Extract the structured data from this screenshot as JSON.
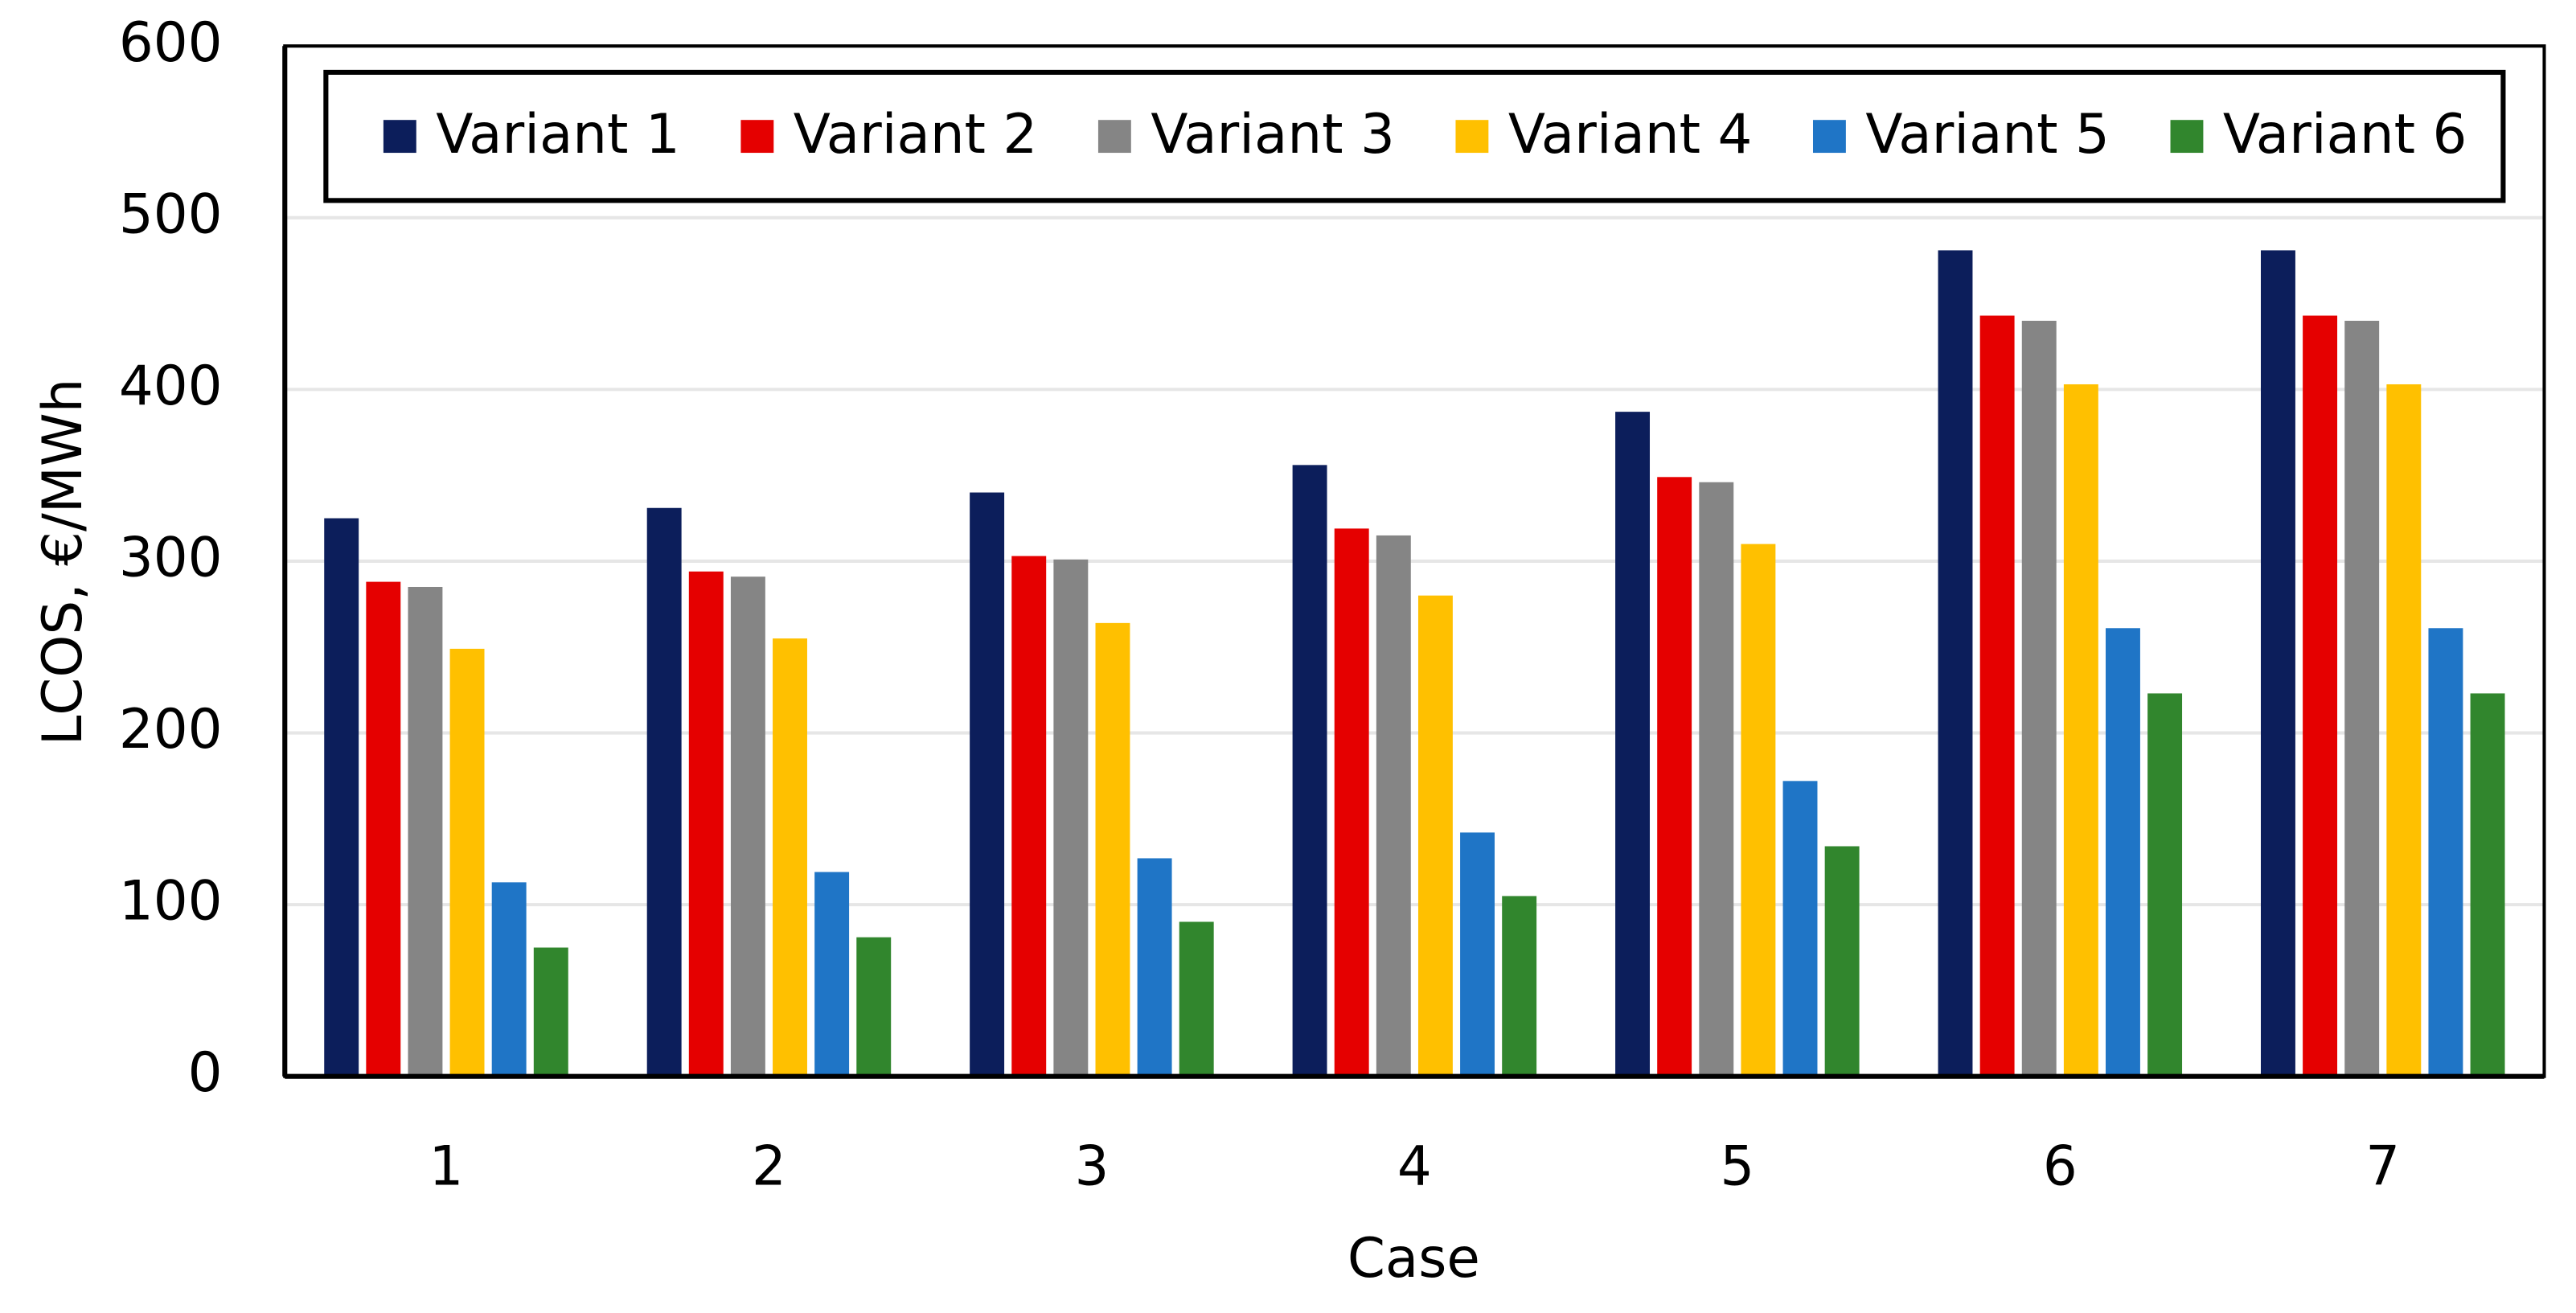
{
  "chart_data": {
    "type": "bar",
    "x_label": "Case",
    "y_label": "LCOS, €/MWh",
    "categories": [
      "1",
      "2",
      "3",
      "4",
      "5",
      "6",
      "7"
    ],
    "series": [
      {
        "name": "Variant 1",
        "color": "#0c1e5b",
        "values": [
          325,
          331,
          340,
          356,
          387,
          481,
          481
        ]
      },
      {
        "name": "Variant 2",
        "color": "#e50000",
        "values": [
          288,
          294,
          303,
          319,
          349,
          443,
          443
        ]
      },
      {
        "name": "Variant 3",
        "color": "#858585",
        "values": [
          285,
          291,
          301,
          315,
          346,
          440,
          440
        ]
      },
      {
        "name": "Variant 4",
        "color": "#ffc000",
        "values": [
          249,
          255,
          264,
          280,
          310,
          403,
          403
        ]
      },
      {
        "name": "Variant 5",
        "color": "#1f75c6",
        "values": [
          113,
          119,
          127,
          142,
          172,
          261,
          261
        ]
      },
      {
        "name": "Variant 6",
        "color": "#31862d",
        "values": [
          75,
          81,
          90,
          105,
          134,
          223,
          223
        ]
      }
    ],
    "ylim": [
      0,
      600
    ],
    "yticks": [
      0,
      100,
      200,
      300,
      400,
      500,
      600
    ],
    "grid": true,
    "legend": "top"
  }
}
